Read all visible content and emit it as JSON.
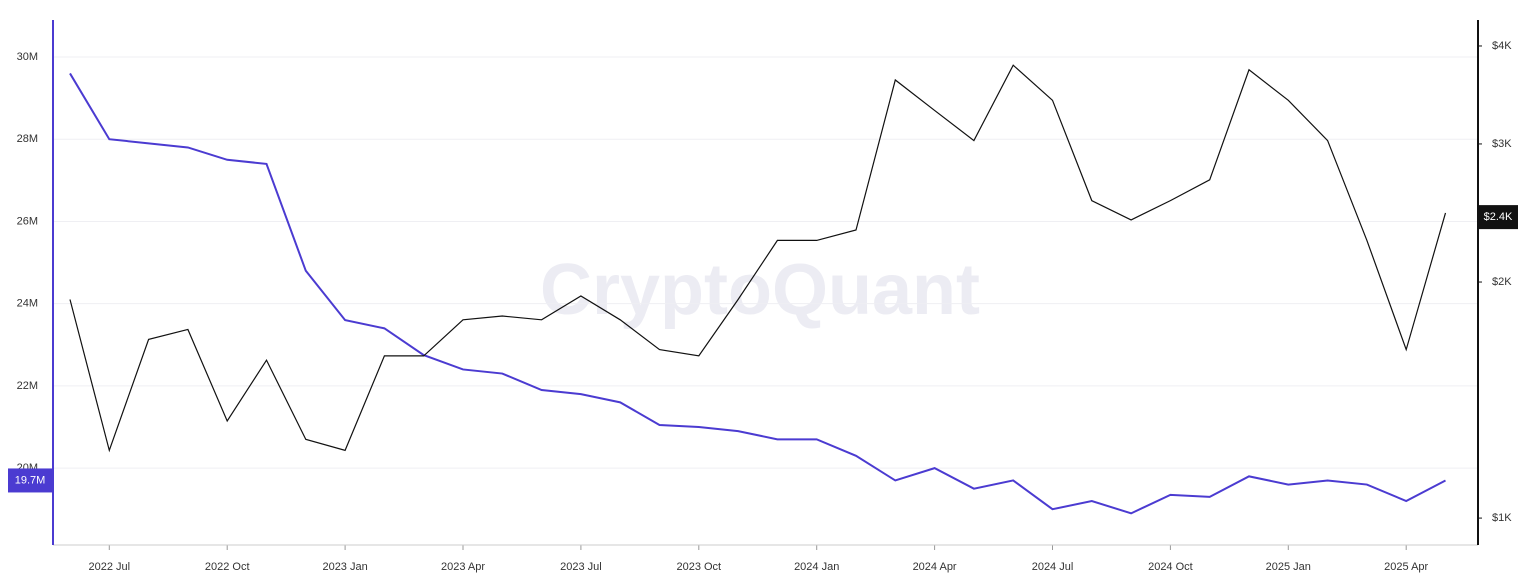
{
  "chart_data": {
    "type": "line",
    "watermark": "CryptoQuant",
    "x": [
      "2022-06",
      "2022-07",
      "2022-08",
      "2022-09",
      "2022-10",
      "2022-11",
      "2022-12",
      "2023-01",
      "2023-02",
      "2023-03",
      "2023-04",
      "2023-05",
      "2023-06",
      "2023-07",
      "2023-08",
      "2023-09",
      "2023-10",
      "2023-11",
      "2023-12",
      "2024-01",
      "2024-02",
      "2024-03",
      "2024-04",
      "2024-05",
      "2024-06",
      "2024-07",
      "2024-08",
      "2024-09",
      "2024-10",
      "2024-11",
      "2024-12",
      "2025-01",
      "2025-02",
      "2025-03",
      "2025-04",
      "2025-05"
    ],
    "series": [
      {
        "color": "#4b3bd1",
        "axis": "y",
        "values": [
          29.6,
          28.0,
          27.9,
          27.8,
          27.5,
          27.4,
          24.8,
          23.6,
          23.4,
          22.75,
          22.4,
          22.3,
          21.9,
          21.8,
          21.6,
          21.05,
          21.0,
          20.9,
          20.7,
          20.7,
          20.3,
          19.7,
          20.0,
          19.5,
          19.7,
          19.0,
          19.2,
          18.9,
          19.35,
          19.3,
          19.8,
          19.6,
          19.7,
          19.6,
          19.2,
          19.7
        ]
      },
      {
        "color": "#111111",
        "axis": "y2",
        "values": [
          1900,
          1220,
          1690,
          1740,
          1330,
          1590,
          1260,
          1220,
          1610,
          1610,
          1790,
          1810,
          1790,
          1920,
          1790,
          1640,
          1610,
          1900,
          2260,
          2260,
          2330,
          3620,
          3310,
          3030,
          3780,
          3410,
          2540,
          2400,
          2540,
          2700,
          3730,
          3410,
          3030,
          2260,
          1640,
          2450
        ]
      }
    ],
    "ylim": [
      18.13,
      30.9
    ],
    "yticks": [
      {
        "value": 20,
        "label": "20M"
      },
      {
        "value": 22,
        "label": "22M"
      },
      {
        "value": 24,
        "label": "24M"
      },
      {
        "value": 26,
        "label": "26M"
      },
      {
        "value": 28,
        "label": "28M"
      },
      {
        "value": 30,
        "label": "30M"
      }
    ],
    "y2lim": [
      924,
      4317
    ],
    "y2log": true,
    "y2ticks": [
      {
        "value": 1000,
        "label": "$1K"
      },
      {
        "value": 2000,
        "label": "$2K"
      },
      {
        "value": 3000,
        "label": "$3K"
      },
      {
        "value": 4000,
        "label": "$4K"
      }
    ],
    "xticks": [
      {
        "value": "2022-07",
        "label": "2022 Jul"
      },
      {
        "value": "2022-10",
        "label": "2022 Oct"
      },
      {
        "value": "2023-01",
        "label": "2023 Jan"
      },
      {
        "value": "2023-04",
        "label": "2023 Apr"
      },
      {
        "value": "2023-07",
        "label": "2023 Jul"
      },
      {
        "value": "2023-10",
        "label": "2023 Oct"
      },
      {
        "value": "2024-01",
        "label": "2024 Jan"
      },
      {
        "value": "2024-04",
        "label": "2024 Apr"
      },
      {
        "value": "2024-07",
        "label": "2024 Jul"
      },
      {
        "value": "2024-10",
        "label": "2024 Oct"
      },
      {
        "value": "2025-01",
        "label": "2025 Jan"
      },
      {
        "value": "2025-04",
        "label": "2025 Apr"
      }
    ],
    "grid": true,
    "y_badge": {
      "value": 19.7,
      "label": "19.7M"
    },
    "y2_badge": {
      "value": 2420,
      "label": "$2.4K"
    }
  }
}
